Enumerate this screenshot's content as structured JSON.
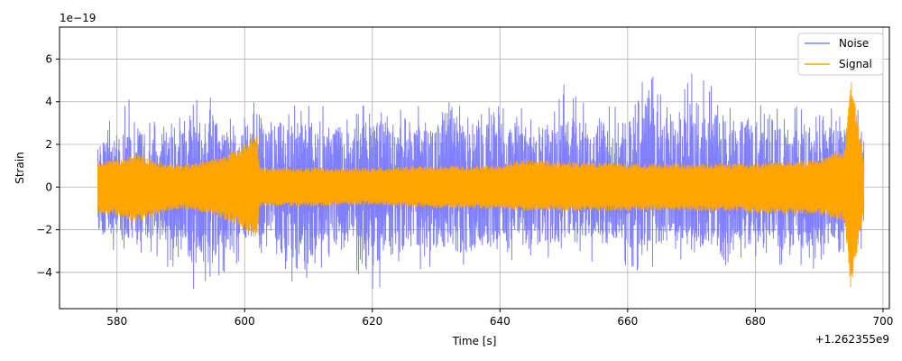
{
  "chart_data": {
    "type": "line",
    "xlabel": "Time [s]",
    "ylabel": "Strain",
    "x_offset_label": "+1.262355e9",
    "y_scale_label": "1e−19",
    "xlim": [
      571,
      701
    ],
    "ylim": [
      -5.7,
      7.5
    ],
    "x_ticks": [
      580,
      600,
      620,
      640,
      660,
      680,
      700
    ],
    "y_ticks": [
      -4,
      -2,
      0,
      2,
      4,
      6
    ],
    "grid": true,
    "legend_position": "top-right",
    "series": [
      {
        "name": "Noise",
        "color": "#7f7fff",
        "x_range": [
          577,
          697
        ],
        "envelope": [
          [
            577,
            3.4,
            -2.8
          ],
          [
            580,
            2.9,
            -3.1
          ],
          [
            582,
            4.4,
            -3.2
          ],
          [
            585,
            3.0,
            -3.3
          ],
          [
            590,
            3.3,
            -4.1
          ],
          [
            592,
            4.3,
            -4.8
          ],
          [
            595,
            4.3,
            -4.3
          ],
          [
            598,
            3.1,
            -3.9
          ],
          [
            600,
            3.8,
            -3.4
          ],
          [
            602,
            4.3,
            -3.0
          ],
          [
            605,
            3.8,
            -4.2
          ],
          [
            610,
            4.5,
            -4.8
          ],
          [
            615,
            3.8,
            -3.2
          ],
          [
            620,
            4.0,
            -4.9
          ],
          [
            622,
            4.2,
            -4.6
          ],
          [
            625,
            3.5,
            -3.9
          ],
          [
            630,
            4.3,
            -4.0
          ],
          [
            635,
            4.5,
            -4.1
          ],
          [
            640,
            4.2,
            -3.6
          ],
          [
            645,
            3.5,
            -3.6
          ],
          [
            650,
            4.8,
            -3.6
          ],
          [
            655,
            4.0,
            -3.5
          ],
          [
            660,
            4.3,
            -3.8
          ],
          [
            663,
            6.9,
            -4.0
          ],
          [
            665,
            4.3,
            -3.4
          ],
          [
            670,
            5.5,
            -4.1
          ],
          [
            675,
            4.4,
            -3.8
          ],
          [
            680,
            4.3,
            -3.5
          ],
          [
            685,
            4.3,
            -3.8
          ],
          [
            690,
            3.6,
            -3.8
          ],
          [
            694,
            3.8,
            -3.1
          ],
          [
            697,
            3.9,
            -3.0
          ]
        ]
      },
      {
        "name": "Signal",
        "color": "#ffa500",
        "x_range": [
          577,
          697
        ],
        "envelope": [
          [
            577,
            1.2,
            -1.2
          ],
          [
            580,
            1.3,
            -1.3
          ],
          [
            583,
            1.6,
            -1.7
          ],
          [
            586,
            1.2,
            -1.3
          ],
          [
            590,
            1.0,
            -1.0
          ],
          [
            595,
            1.3,
            -1.3
          ],
          [
            599,
            1.8,
            -1.8
          ],
          [
            601,
            2.3,
            -2.3
          ],
          [
            602,
            2.4,
            -2.3
          ],
          [
            602.3,
            0.9,
            -0.9
          ],
          [
            610,
            0.9,
            -0.9
          ],
          [
            620,
            0.9,
            -0.8
          ],
          [
            630,
            1.0,
            -1.0
          ],
          [
            640,
            1.0,
            -1.0
          ],
          [
            643,
            1.3,
            -1.1
          ],
          [
            650,
            1.2,
            -1.1
          ],
          [
            660,
            1.1,
            -1.1
          ],
          [
            670,
            1.1,
            -1.1
          ],
          [
            680,
            1.1,
            -1.2
          ],
          [
            690,
            1.3,
            -1.3
          ],
          [
            694,
            1.8,
            -1.6
          ],
          [
            695,
            5.2,
            -4.9
          ],
          [
            697,
            1.2,
            -1.2
          ]
        ]
      }
    ]
  }
}
